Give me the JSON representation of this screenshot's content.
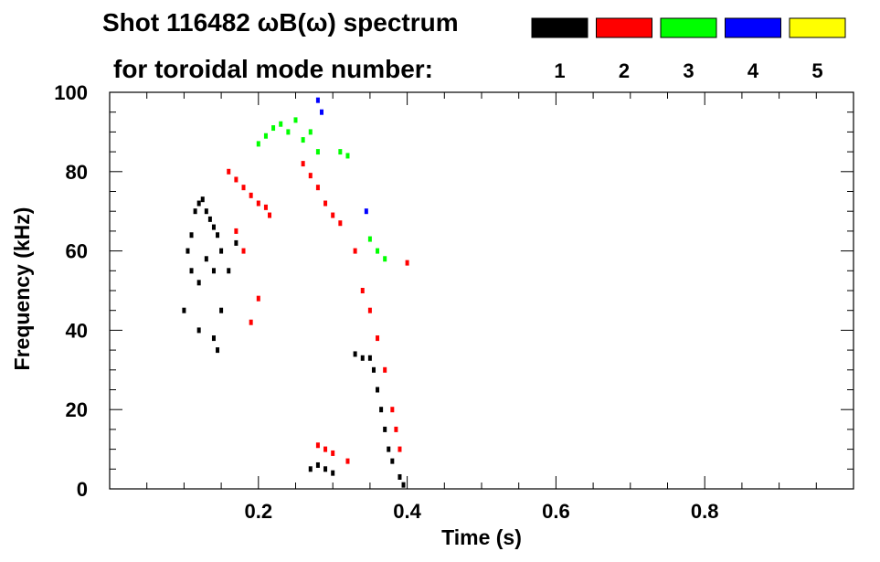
{
  "chart_data": {
    "type": "scatter",
    "title_line1": "Shot 116482 ωB(ω) spectrum",
    "title_line2": "for toroidal mode number:",
    "xlabel": "Time (s)",
    "ylabel": "Frequency (kHz)",
    "xlim": [
      0.0,
      1.0
    ],
    "ylim": [
      0,
      100
    ],
    "x_ticks": [
      "0.2",
      "0.4",
      "0.6",
      "0.8"
    ],
    "x_tick_values": [
      0.2,
      0.4,
      0.6,
      0.8
    ],
    "y_ticks": [
      "0",
      "20",
      "40",
      "60",
      "80",
      "100"
    ],
    "y_tick_values": [
      0,
      20,
      40,
      60,
      80,
      100
    ],
    "legend_placement": "top-right",
    "series": [
      {
        "name": "1",
        "color": "#000000",
        "points": [
          [
            0.105,
            60
          ],
          [
            0.11,
            64
          ],
          [
            0.115,
            70
          ],
          [
            0.12,
            72
          ],
          [
            0.125,
            73
          ],
          [
            0.13,
            70
          ],
          [
            0.135,
            68
          ],
          [
            0.14,
            66
          ],
          [
            0.145,
            64
          ],
          [
            0.15,
            60
          ],
          [
            0.11,
            55
          ],
          [
            0.12,
            52
          ],
          [
            0.13,
            58
          ],
          [
            0.14,
            55
          ],
          [
            0.15,
            45
          ],
          [
            0.16,
            55
          ],
          [
            0.17,
            62
          ],
          [
            0.1,
            45
          ],
          [
            0.12,
            40
          ],
          [
            0.14,
            38
          ],
          [
            0.145,
            35
          ],
          [
            0.27,
            5
          ],
          [
            0.28,
            6
          ],
          [
            0.29,
            5
          ],
          [
            0.3,
            4
          ],
          [
            0.33,
            34
          ],
          [
            0.34,
            33
          ],
          [
            0.35,
            33
          ],
          [
            0.355,
            30
          ],
          [
            0.36,
            25
          ],
          [
            0.365,
            20
          ],
          [
            0.37,
            15
          ],
          [
            0.375,
            10
          ],
          [
            0.38,
            7
          ],
          [
            0.39,
            3
          ],
          [
            0.395,
            1
          ]
        ]
      },
      {
        "name": "2",
        "color": "#ff0000",
        "points": [
          [
            0.16,
            80
          ],
          [
            0.17,
            78
          ],
          [
            0.18,
            76
          ],
          [
            0.19,
            74
          ],
          [
            0.2,
            72
          ],
          [
            0.21,
            71
          ],
          [
            0.215,
            69
          ],
          [
            0.17,
            65
          ],
          [
            0.18,
            60
          ],
          [
            0.19,
            42
          ],
          [
            0.2,
            48
          ],
          [
            0.26,
            82
          ],
          [
            0.27,
            79
          ],
          [
            0.28,
            76
          ],
          [
            0.29,
            72
          ],
          [
            0.3,
            69
          ],
          [
            0.31,
            67
          ],
          [
            0.28,
            11
          ],
          [
            0.29,
            10
          ],
          [
            0.3,
            9
          ],
          [
            0.32,
            7
          ],
          [
            0.33,
            60
          ],
          [
            0.34,
            50
          ],
          [
            0.35,
            45
          ],
          [
            0.36,
            38
          ],
          [
            0.37,
            30
          ],
          [
            0.38,
            20
          ],
          [
            0.385,
            15
          ],
          [
            0.39,
            10
          ],
          [
            0.4,
            57
          ]
        ]
      },
      {
        "name": "3",
        "color": "#00ff00",
        "points": [
          [
            0.2,
            87
          ],
          [
            0.21,
            89
          ],
          [
            0.22,
            91
          ],
          [
            0.23,
            92
          ],
          [
            0.24,
            90
          ],
          [
            0.25,
            93
          ],
          [
            0.26,
            88
          ],
          [
            0.27,
            90
          ],
          [
            0.28,
            85
          ],
          [
            0.31,
            85
          ],
          [
            0.32,
            84
          ],
          [
            0.35,
            63
          ],
          [
            0.36,
            60
          ],
          [
            0.37,
            58
          ]
        ]
      },
      {
        "name": "4",
        "color": "#0000ff",
        "points": [
          [
            0.28,
            98
          ],
          [
            0.285,
            95
          ],
          [
            0.345,
            70
          ]
        ]
      },
      {
        "name": "5",
        "color": "#ffff00",
        "points": []
      }
    ]
  }
}
